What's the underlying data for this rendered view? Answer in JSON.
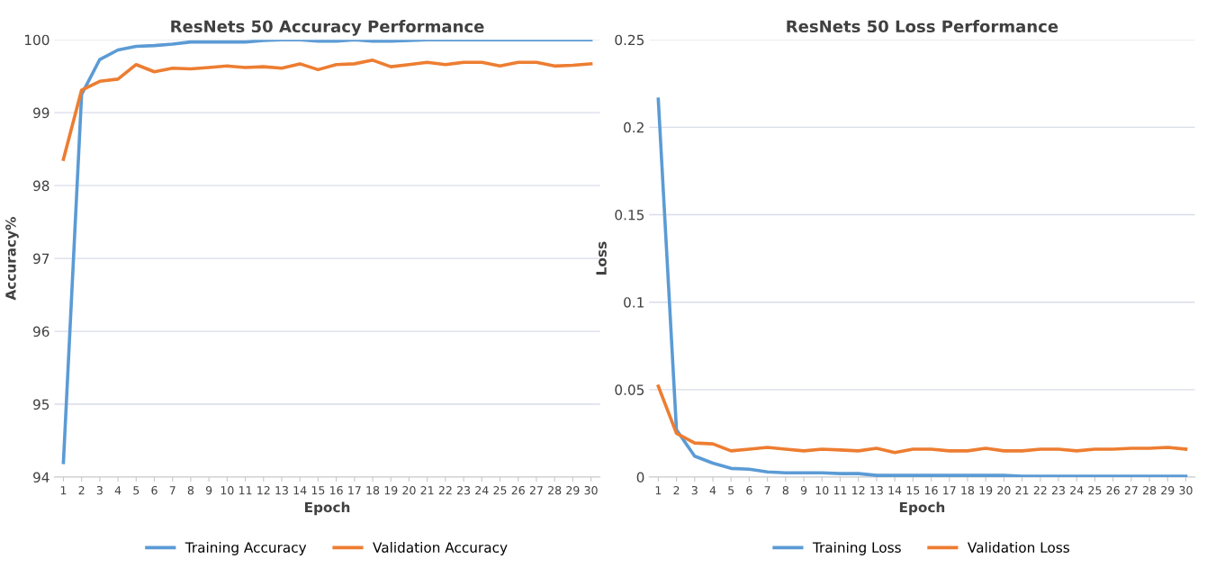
{
  "chart_data": [
    {
      "type": "line",
      "title": "ResNets 50 Accuracy Performance",
      "xlabel": "Epoch",
      "ylabel": "Accuracy%",
      "categories": [
        "1",
        "2",
        "3",
        "4",
        "5",
        "6",
        "7",
        "8",
        "9",
        "10",
        "11",
        "12",
        "13",
        "14",
        "15",
        "16",
        "17",
        "18",
        "19",
        "20",
        "21",
        "22",
        "23",
        "24",
        "25",
        "26",
        "27",
        "28",
        "29",
        "30"
      ],
      "series": [
        {
          "name": "Training Accuracy",
          "color": "#5b9bd5",
          "values": [
            94.2,
            99.25,
            99.73,
            99.86,
            99.91,
            99.92,
            99.94,
            99.97,
            99.97,
            99.97,
            99.97,
            99.99,
            100,
            100,
            99.98,
            99.98,
            100,
            99.98,
            99.98,
            99.99,
            100,
            100,
            100,
            100,
            100,
            100,
            100,
            100,
            100,
            100
          ]
        },
        {
          "name": "Validation Accuracy",
          "color": "#ed7d31",
          "values": [
            98.36,
            99.31,
            99.43,
            99.46,
            99.66,
            99.56,
            99.61,
            99.6,
            99.62,
            99.64,
            99.62,
            99.63,
            99.61,
            99.67,
            99.59,
            99.66,
            99.67,
            99.72,
            99.63,
            99.66,
            99.69,
            99.66,
            99.69,
            99.69,
            99.64,
            99.69,
            99.69,
            99.64,
            99.65,
            99.67
          ]
        }
      ],
      "ylim": [
        94,
        100
      ],
      "yticks": [
        94,
        95,
        96,
        97,
        98,
        99,
        100
      ],
      "grid": "y",
      "legend": "bottom",
      "marker": "none",
      "line_style": "solid"
    },
    {
      "type": "line",
      "title": "ResNets 50 Loss Performance",
      "xlabel": "Epoch",
      "ylabel": "Loss",
      "categories": [
        "1",
        "2",
        "3",
        "4",
        "5",
        "6",
        "7",
        "8",
        "9",
        "10",
        "11",
        "12",
        "13",
        "14",
        "15",
        "16",
        "17",
        "18",
        "19",
        "20",
        "21",
        "22",
        "23",
        "24",
        "25",
        "26",
        "27",
        "28",
        "29",
        "30"
      ],
      "series": [
        {
          "name": "Training Loss",
          "color": "#5b9bd5",
          "values": [
            0.216,
            0.027,
            0.012,
            0.008,
            0.005,
            0.0045,
            0.003,
            0.0025,
            0.0025,
            0.0025,
            0.002,
            0.002,
            0.001,
            0.001,
            0.001,
            0.001,
            0.001,
            0.001,
            0.001,
            0.001,
            0.0005,
            0.0005,
            0.0005,
            0.0005,
            0.0005,
            0.0005,
            0.0005,
            0.0005,
            0.0005,
            0.0005
          ]
        },
        {
          "name": "Validation Loss",
          "color": "#ed7d31",
          "values": [
            0.052,
            0.025,
            0.0195,
            0.019,
            0.015,
            0.016,
            0.017,
            0.016,
            0.015,
            0.016,
            0.0155,
            0.015,
            0.0165,
            0.014,
            0.016,
            0.016,
            0.015,
            0.015,
            0.0165,
            0.015,
            0.015,
            0.016,
            0.016,
            0.015,
            0.016,
            0.016,
            0.0165,
            0.0165,
            0.017,
            0.016
          ]
        }
      ],
      "ylim": [
        0,
        0.25
      ],
      "yticks": [
        0,
        0.05,
        0.1,
        0.15,
        0.2,
        0.25
      ],
      "grid": "y",
      "legend": "bottom",
      "marker": "none",
      "line_style": "solid"
    }
  ]
}
